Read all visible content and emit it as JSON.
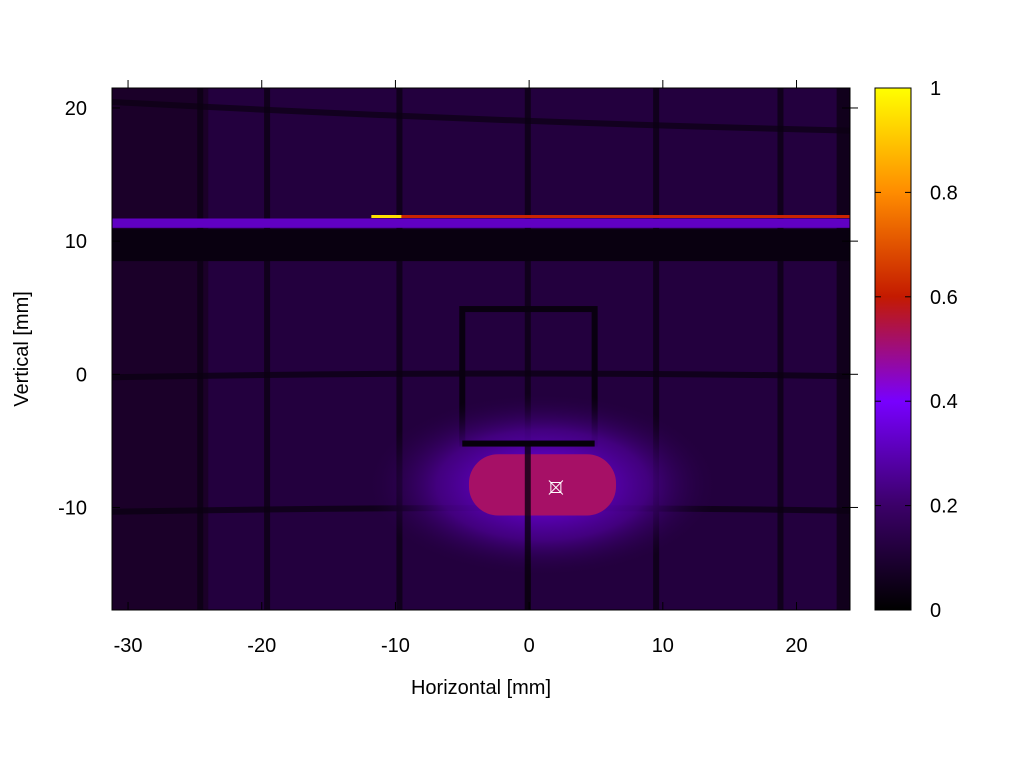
{
  "chart_data": {
    "type": "heatmap",
    "title": "",
    "xlabel": "Horizontal [mm]",
    "ylabel": "Vertical [mm]",
    "xlim": [
      -31.2,
      24.0
    ],
    "ylim": [
      -17.7,
      21.5
    ],
    "xticks": [
      -30,
      -20,
      -10,
      0,
      10,
      20
    ],
    "yticks": [
      -10,
      0,
      10,
      20
    ],
    "colorbar": {
      "range": [
        0,
        1
      ],
      "ticks": [
        0,
        0.2,
        0.4,
        0.6,
        0.8,
        1
      ],
      "palette": [
        "#000000",
        "#3b0068",
        "#7800ff",
        "#c41a00",
        "#ff8c00",
        "#ffff00"
      ]
    },
    "background_level": 0.12,
    "grid_wires": {
      "vertical_x": [
        -24.6,
        -19.6,
        -9.7,
        -0.1,
        9.5,
        18.8
      ],
      "horizontal_y": [
        0.0,
        -10.1
      ],
      "top_curved_y": [
        19.7,
        18.3
      ]
    },
    "features": {
      "bright_strip": {
        "y_range": [
          11.0,
          11.7
        ],
        "level": 0.32
      },
      "hot_line": {
        "x_range": [
          -11.8,
          24.0
        ],
        "y": 11.85,
        "level": 0.62
      },
      "dark_band": {
        "y_range": [
          8.5,
          10.9
        ],
        "level": 0.03
      },
      "frame": {
        "x_range": [
          -5.0,
          4.9
        ],
        "y_range": [
          -5.2,
          4.9
        ],
        "level": 0.03
      },
      "beam_spot": {
        "center": [
          1.0,
          -8.3
        ],
        "half_width": [
          5.5,
          2.3
        ],
        "peak_level": 0.52,
        "halo_level": 0.25
      }
    },
    "marker": {
      "x": 2.0,
      "y": -8.5,
      "symbol": "crosshair-square",
      "color": "#ffffff"
    }
  }
}
